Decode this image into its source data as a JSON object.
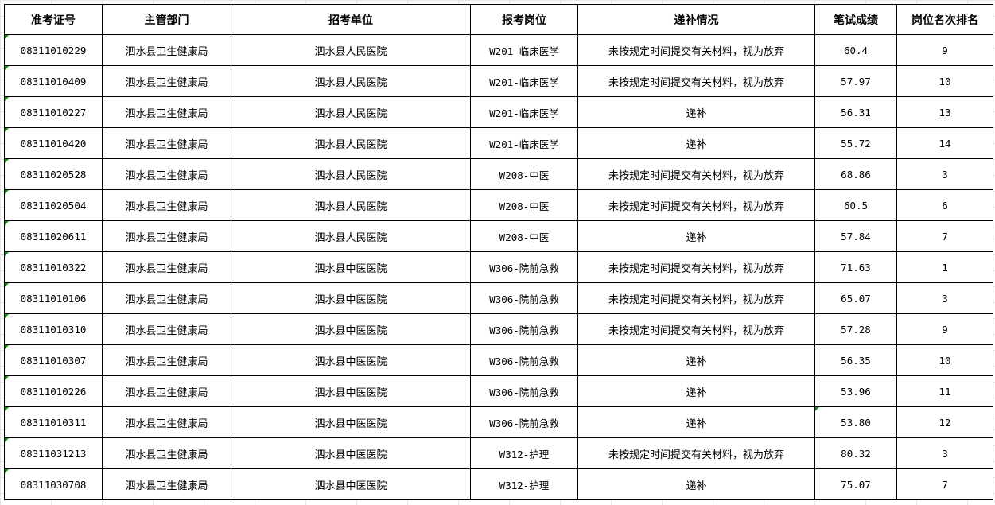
{
  "headers": [
    "准考证号",
    "主管部门",
    "招考单位",
    "报考岗位",
    "递补情况",
    "笔试成绩",
    "岗位名次排名"
  ],
  "rows": [
    [
      "08311010229",
      "泗水县卫生健康局",
      "泗水县人民医院",
      "W201-临床医学",
      "未按规定时间提交有关材料，视为放弃",
      "60.4",
      "9"
    ],
    [
      "08311010409",
      "泗水县卫生健康局",
      "泗水县人民医院",
      "W201-临床医学",
      "未按规定时间提交有关材料，视为放弃",
      "57.97",
      "10"
    ],
    [
      "08311010227",
      "泗水县卫生健康局",
      "泗水县人民医院",
      "W201-临床医学",
      "递补",
      "56.31",
      "13"
    ],
    [
      "08311010420",
      "泗水县卫生健康局",
      "泗水县人民医院",
      "W201-临床医学",
      "递补",
      "55.72",
      "14"
    ],
    [
      "08311020528",
      "泗水县卫生健康局",
      "泗水县人民医院",
      "W208-中医",
      "未按规定时间提交有关材料，视为放弃",
      "68.86",
      "3"
    ],
    [
      "08311020504",
      "泗水县卫生健康局",
      "泗水县人民医院",
      "W208-中医",
      "未按规定时间提交有关材料，视为放弃",
      "60.5",
      "6"
    ],
    [
      "08311020611",
      "泗水县卫生健康局",
      "泗水县人民医院",
      "W208-中医",
      "递补",
      "57.84",
      "7"
    ],
    [
      "08311010322",
      "泗水县卫生健康局",
      "泗水县中医医院",
      "W306-院前急救",
      "未按规定时间提交有关材料，视为放弃",
      "71.63",
      "1"
    ],
    [
      "08311010106",
      "泗水县卫生健康局",
      "泗水县中医医院",
      "W306-院前急救",
      "未按规定时间提交有关材料，视为放弃",
      "65.07",
      "3"
    ],
    [
      "08311010310",
      "泗水县卫生健康局",
      "泗水县中医医院",
      "W306-院前急救",
      "未按规定时间提交有关材料，视为放弃",
      "57.28",
      "9"
    ],
    [
      "08311010307",
      "泗水县卫生健康局",
      "泗水县中医医院",
      "W306-院前急救",
      "递补",
      "56.35",
      "10"
    ],
    [
      "08311010226",
      "泗水县卫生健康局",
      "泗水县中医医院",
      "W306-院前急救",
      "递补",
      "53.96",
      "11"
    ],
    [
      "08311010311",
      "泗水县卫生健康局",
      "泗水县中医医院",
      "W306-院前急救",
      "递补",
      "53.80",
      "12"
    ],
    [
      "08311031213",
      "泗水县卫生健康局",
      "泗水县中医医院",
      "W312-护理",
      "未按规定时间提交有关材料，视为放弃",
      "80.32",
      "3"
    ],
    [
      "08311030708",
      "泗水县卫生健康局",
      "泗水县中医医院",
      "W312-护理",
      "递补",
      "75.07",
      "7"
    ]
  ],
  "colors": {
    "error_flag": "#1a8a1a",
    "border": "#000000"
  }
}
